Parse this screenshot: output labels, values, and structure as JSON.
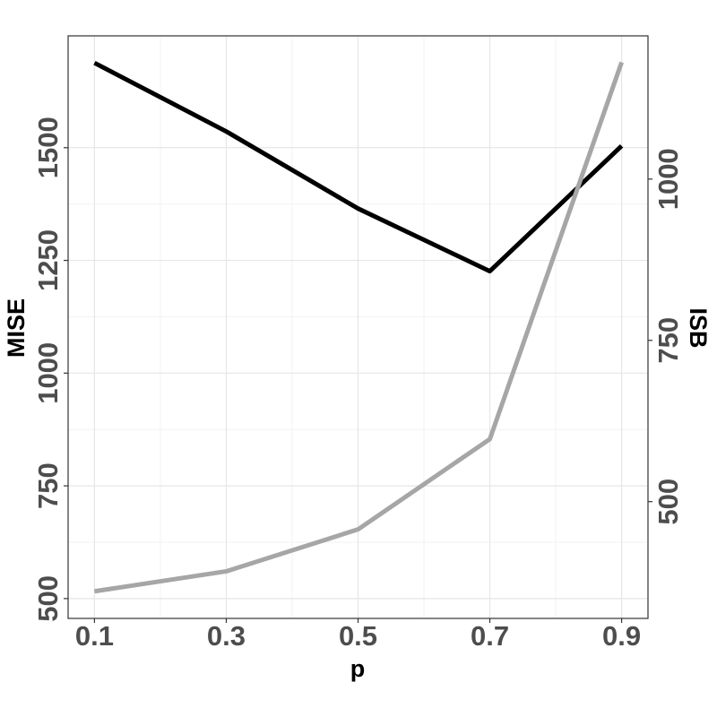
{
  "chart_data": {
    "type": "line",
    "x_label": "p",
    "y_label": "MISE",
    "y2_label": "ISB",
    "x": [
      0.1,
      0.3,
      0.5,
      0.7,
      0.9
    ],
    "series": [
      {
        "color": "#000000",
        "values": [
          1688,
          1536,
          1365,
          1226,
          1504
        ]
      },
      {
        "color": "#a6a6a6",
        "axis": "y2",
        "values": [
          361,
          392,
          457,
          597,
          1181
        ]
      }
    ],
    "xlim": [
      0.06,
      0.94
    ],
    "xticks": [
      0.1,
      0.3,
      0.5,
      0.7,
      0.9
    ],
    "ylim": [
      456,
      1748
    ],
    "yticks": [
      500,
      750,
      1000,
      1250,
      1500
    ],
    "y2lim": [
      319,
      1222
    ],
    "y2ticks": [
      500,
      750,
      1000
    ],
    "grid": true
  }
}
